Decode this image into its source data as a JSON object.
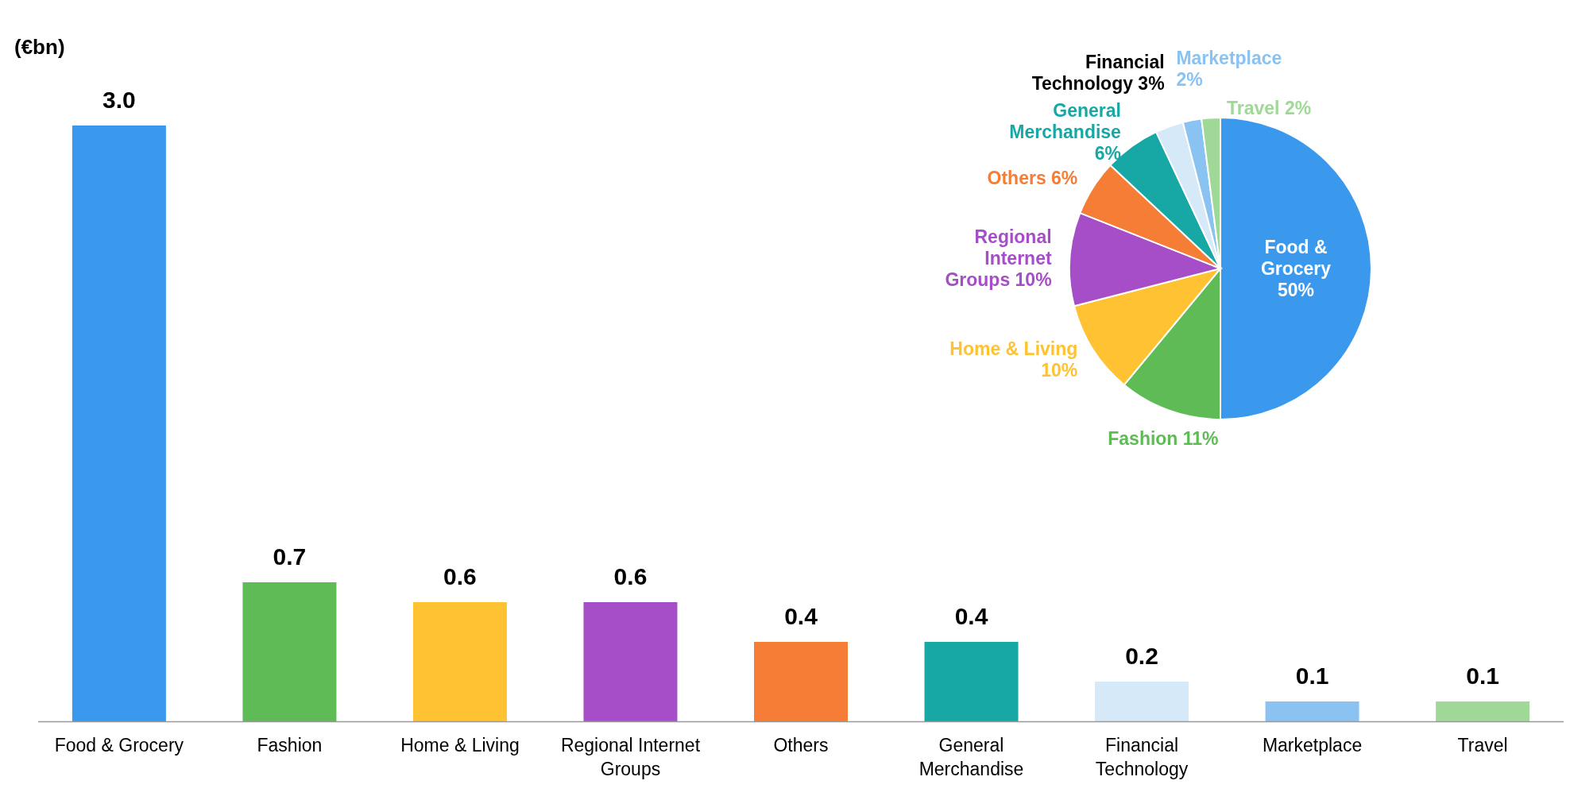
{
  "chart_data": [
    {
      "type": "bar",
      "ylabel": "(€bn)",
      "categories": [
        "Food & Grocery",
        "Fashion",
        "Home & Living",
        "Regional Internet Groups",
        "Others",
        "General Merchandise",
        "Financial Technology",
        "Marketplace",
        "Travel"
      ],
      "values": [
        3.0,
        0.7,
        0.6,
        0.6,
        0.4,
        0.4,
        0.2,
        0.1,
        0.1
      ],
      "value_labels": [
        "3.0",
        "0.7",
        "0.6",
        "0.6",
        "0.4",
        "0.4",
        "0.2",
        "0.1",
        "0.1"
      ],
      "colors": [
        "#3a99ec",
        "#5fbb56",
        "#ffc233",
        "#a64ec8",
        "#f57d36",
        "#17a8a5",
        "#d6e9f8",
        "#8ac2f2",
        "#a0d898"
      ]
    },
    {
      "type": "pie",
      "categories": [
        "Food & Grocery",
        "Fashion",
        "Home & Living",
        "Regional Internet Groups",
        "Others",
        "General Merchandise",
        "Financial Technology",
        "Marketplace",
        "Travel"
      ],
      "values": [
        50,
        11,
        10,
        10,
        6,
        6,
        3,
        2,
        2
      ],
      "value_labels": [
        "50%",
        "11%",
        "10%",
        "10%",
        "6%",
        "6%",
        "3%",
        "2%",
        "2%"
      ],
      "colors": [
        "#3a99ec",
        "#5fbb56",
        "#ffc233",
        "#a64ec8",
        "#f57d36",
        "#17a8a5",
        "#d6e9f8",
        "#8ac2f2",
        "#a0d898"
      ]
    }
  ]
}
